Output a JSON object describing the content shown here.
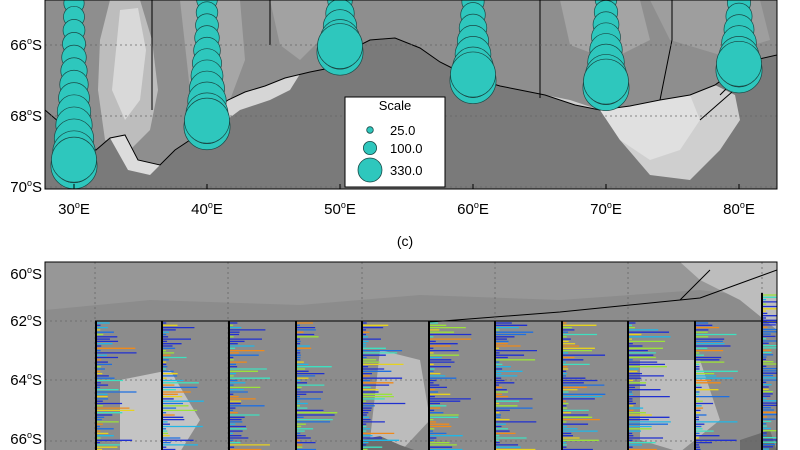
{
  "top_panel": {
    "y_ticks": [
      {
        "deg": "66",
        "hemi": "S"
      },
      {
        "deg": "68",
        "hemi": "S"
      },
      {
        "deg": "70",
        "hemi": "S"
      }
    ],
    "x_ticks": [
      {
        "deg": "30",
        "hemi": "E"
      },
      {
        "deg": "40",
        "hemi": "E"
      },
      {
        "deg": "50",
        "hemi": "E"
      },
      {
        "deg": "60",
        "hemi": "E"
      },
      {
        "deg": "70",
        "hemi": "E"
      },
      {
        "deg": "80",
        "hemi": "E"
      }
    ],
    "legend": {
      "title": "Scale",
      "entries": [
        {
          "label": "25.0",
          "value": 25
        },
        {
          "label": "100.0",
          "value": 100
        },
        {
          "label": "330.0",
          "value": 330
        }
      ]
    },
    "marker_color": "#2ec7bd",
    "transects": [
      {
        "lon": 30,
        "lat_start": 64.6,
        "lat_end": 69.4
      },
      {
        "lon": 40,
        "lat_start": 64.6,
        "lat_end": 68.3
      },
      {
        "lon": 50,
        "lat_start": 64.6,
        "lat_end": 66.2
      },
      {
        "lon": 60,
        "lat_start": 64.6,
        "lat_end": 67.0
      },
      {
        "lon": 70,
        "lat_start": 64.6,
        "lat_end": 67.2
      },
      {
        "lon": 80,
        "lat_start": 64.6,
        "lat_end": 66.7
      }
    ]
  },
  "bottom_panel": {
    "label": "(c)",
    "y_ticks": [
      {
        "deg": "60",
        "hemi": "S"
      },
      {
        "deg": "62",
        "hemi": "S"
      },
      {
        "deg": "64",
        "hemi": "S"
      },
      {
        "deg": "66",
        "hemi": "S"
      }
    ]
  }
}
